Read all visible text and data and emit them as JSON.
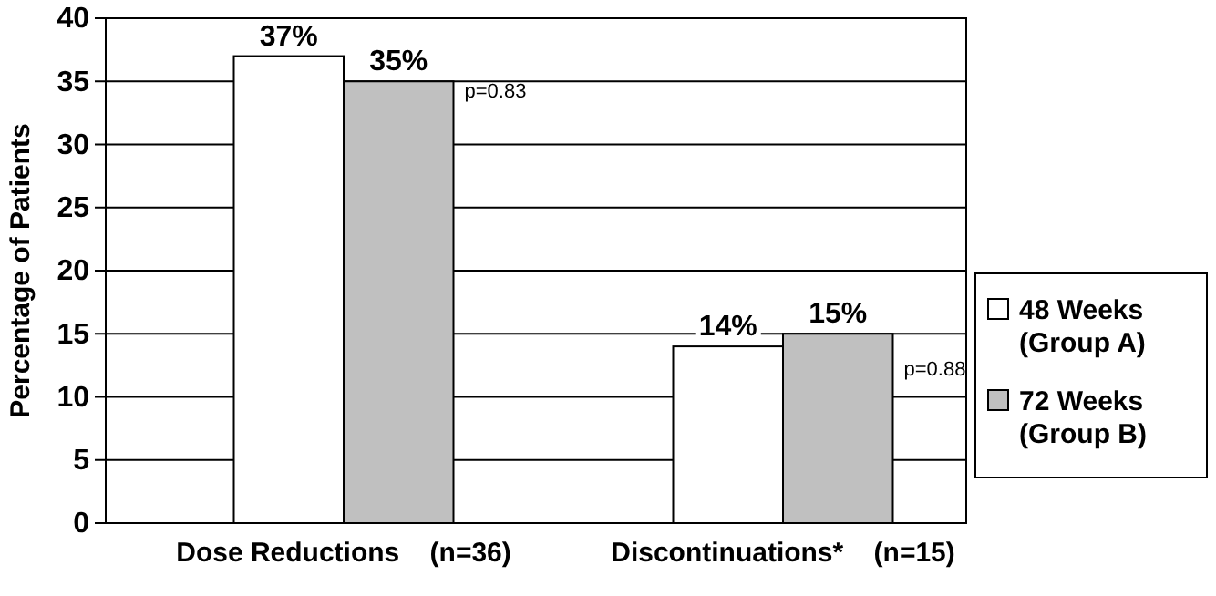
{
  "chart_data": {
    "type": "bar",
    "ylabel": "Percentage of Patients",
    "categories": [
      "Dose Reductions    (n=36)",
      "Discontinuations*    (n=15)"
    ],
    "series": [
      {
        "name": "48 Weeks\n(Group A)",
        "color": "#ffffff",
        "values": [
          37,
          14
        ],
        "value_labels": [
          "37%",
          "14%"
        ]
      },
      {
        "name": "72 Weeks\n(Group B)",
        "color": "#c0c0c0",
        "values": [
          35,
          15
        ],
        "value_labels": [
          "35%",
          "15%"
        ]
      }
    ],
    "ylim": [
      0,
      40
    ],
    "yticks": [
      0,
      5,
      10,
      15,
      20,
      25,
      30,
      35,
      40
    ],
    "grid": "y",
    "legend": "right",
    "annotations": [
      "p=0.83",
      "p=0.88"
    ]
  }
}
